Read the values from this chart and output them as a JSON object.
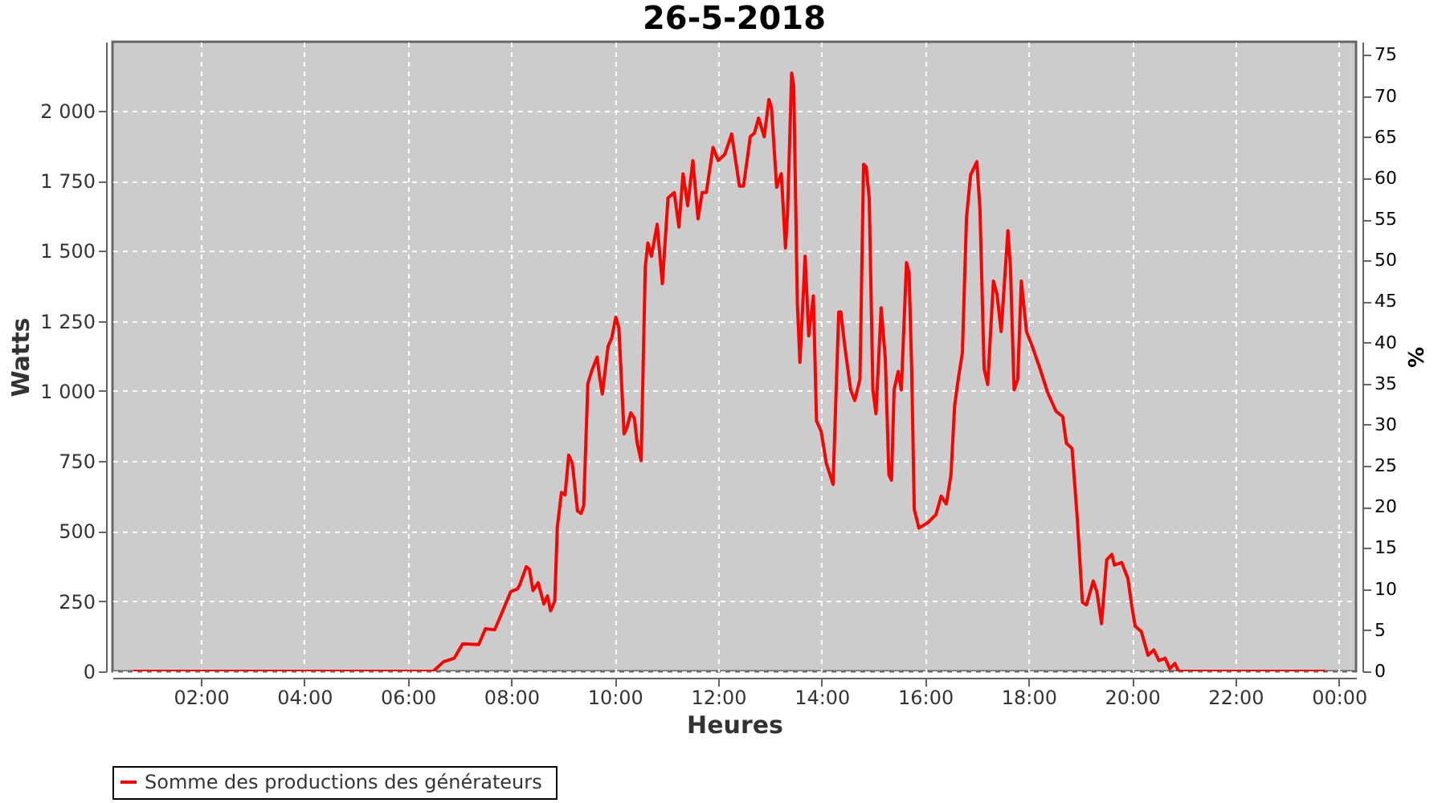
{
  "chart_data": {
    "type": "line",
    "title": "26-5-2018",
    "xlabel": "Heures",
    "ylabel": "Watts",
    "y2label": "%",
    "xlim": [
      0.29,
      24.33
    ],
    "xticks": [
      {
        "value": 2,
        "label": "02:00"
      },
      {
        "value": 4,
        "label": "04:00"
      },
      {
        "value": 6,
        "label": "06:00"
      },
      {
        "value": 8,
        "label": "08:00"
      },
      {
        "value": 10,
        "label": "10:00"
      },
      {
        "value": 12,
        "label": "12:00"
      },
      {
        "value": 14,
        "label": "14:00"
      },
      {
        "value": 16,
        "label": "16:00"
      },
      {
        "value": 18,
        "label": "18:00"
      },
      {
        "value": 20,
        "label": "20:00"
      },
      {
        "value": 22,
        "label": "22:00"
      },
      {
        "value": 24,
        "label": "00:00"
      }
    ],
    "ylim": [
      0,
      2246
    ],
    "yticks": [
      0,
      250,
      500,
      750,
      {
        "value": 1000,
        "label": "1 000"
      },
      {
        "value": 1250,
        "label": "1 250"
      },
      {
        "value": 1500,
        "label": "1 500"
      },
      {
        "value": 1750,
        "label": "1 750"
      },
      {
        "value": 2000,
        "label": "2 000"
      }
    ],
    "y2lim": [
      0,
      76.6
    ],
    "y2ticks": [
      0,
      5,
      10,
      15,
      20,
      25,
      30,
      35,
      40,
      45,
      50,
      55,
      60,
      65,
      70,
      75
    ],
    "grid": true,
    "legend": "bottom",
    "marker": "none",
    "line_style": "solid",
    "series": [
      {
        "name": "Somme des productions des  générateurs",
        "color": "#ff0000",
        "x": [
          0.7,
          6.49,
          6.69,
          6.9,
          7.06,
          7.37,
          7.5,
          7.68,
          7.99,
          8.12,
          8.16,
          8.29,
          8.35,
          8.42,
          8.52,
          8.63,
          8.7,
          8.76,
          8.84,
          8.89,
          8.97,
          9.04,
          9.11,
          9.18,
          9.28,
          9.35,
          9.4,
          9.48,
          9.56,
          9.66,
          9.71,
          9.76,
          9.87,
          9.94,
          10.02,
          10.08,
          10.18,
          10.23,
          10.31,
          10.38,
          10.43,
          10.51,
          10.59,
          10.64,
          10.71,
          10.82,
          10.92,
          11.03,
          11.15,
          11.24,
          11.32,
          11.41,
          11.51,
          11.61,
          11.69,
          11.77,
          11.9,
          12.0,
          12.13,
          12.26,
          12.41,
          12.49,
          12.62,
          12.7,
          12.78,
          12.89,
          12.98,
          13.03,
          13.13,
          13.22,
          13.3,
          13.34,
          13.42,
          13.46,
          13.53,
          13.58,
          13.68,
          13.75,
          13.84,
          13.9,
          13.99,
          14.09,
          14.22,
          14.33,
          14.37,
          14.45,
          14.56,
          14.64,
          14.74,
          14.81,
          14.86,
          14.92,
          14.99,
          15.05,
          15.15,
          15.23,
          15.3,
          15.35,
          15.4,
          15.48,
          15.54,
          15.64,
          15.69,
          15.74,
          15.79,
          15.88,
          16.05,
          16.21,
          16.31,
          16.41,
          16.5,
          16.57,
          16.64,
          16.72,
          16.8,
          16.88,
          17.0,
          17.06,
          17.14,
          17.21,
          17.32,
          17.39,
          17.47,
          17.6,
          17.65,
          17.72,
          17.79,
          17.86,
          17.96,
          18.08,
          18.22,
          18.37,
          18.53,
          18.66,
          18.73,
          18.84,
          18.94,
          19.04,
          19.12,
          19.25,
          19.32,
          19.41,
          19.51,
          19.61,
          19.66,
          19.8,
          19.92,
          20.0,
          20.06,
          20.18,
          20.31,
          20.42,
          20.52,
          20.64,
          20.73,
          20.83,
          20.9,
          23.74
        ],
        "values": [
          0,
          0,
          34,
          47,
          98,
          95,
          152,
          148,
          284,
          294,
          307,
          373,
          364,
          288,
          316,
          240,
          269,
          216,
          250,
          515,
          638,
          629,
          771,
          742,
          572,
          563,
          591,
          1027,
          1074,
          1121,
          1046,
          989,
          1159,
          1188,
          1263,
          1225,
          847,
          866,
          922,
          903,
          818,
          752,
          1443,
          1528,
          1481,
          1595,
          1383,
          1689,
          1708,
          1585,
          1775,
          1661,
          1822,
          1614,
          1708,
          1708,
          1869,
          1822,
          1845,
          1917,
          1731,
          1731,
          1907,
          1920,
          1974,
          1907,
          2040,
          2011,
          1727,
          1775,
          1510,
          1633,
          2134,
          2087,
          1311,
          1102,
          1481,
          1197,
          1339,
          894,
          856,
          742,
          667,
          1282,
          1282,
          1155,
          1004,
          966,
          1042,
          1809,
          1800,
          1686,
          1004,
          919,
          1297,
          1117,
          701,
          682,
          1004,
          1070,
          1004,
          1458,
          1420,
          1080,
          578,
          511,
          530,
          559,
          625,
          597,
          701,
          947,
          1042,
          1136,
          1619,
          1771,
          1818,
          1648,
          1080,
          1023,
          1392,
          1345,
          1212,
          1572,
          1439,
          1004,
          1042,
          1392,
          1212,
          1155,
          1080,
          994,
          928,
          909,
          814,
          795,
          549,
          246,
          237,
          322,
          284,
          170,
          398,
          417,
          379,
          388,
          331,
          227,
          161,
          142,
          57,
          76,
          38,
          47,
          9,
          28,
          0,
          0
        ]
      }
    ]
  }
}
